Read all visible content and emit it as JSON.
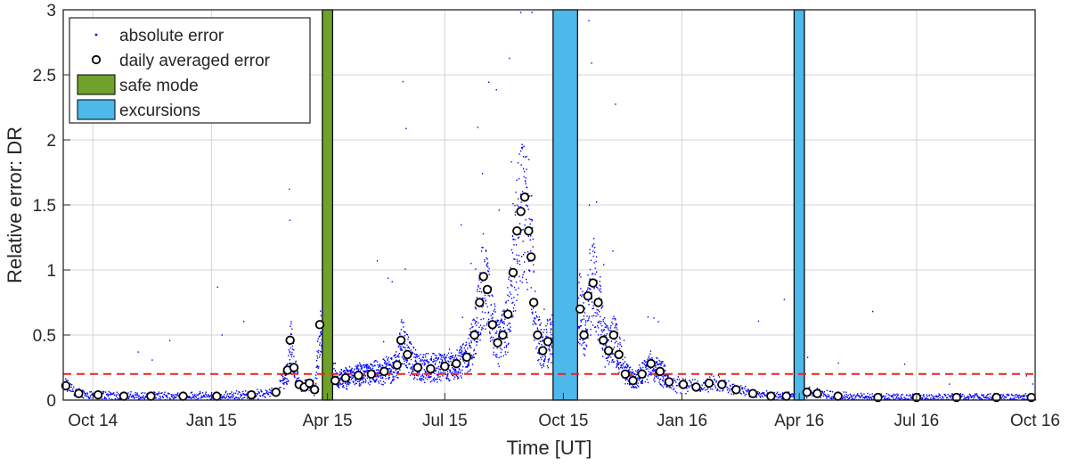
{
  "chart_data": {
    "type": "scatter",
    "xlabel": "Time [UT]",
    "ylabel": "Relative error: DR",
    "ylim": [
      0,
      3
    ],
    "xlim": [
      "2014-09-08",
      "2016-10-01"
    ],
    "grid": true,
    "legend_placement": "top-left",
    "x_ticks": [
      {
        "date": "2014-10-01",
        "label": "Oct 14"
      },
      {
        "date": "2015-01-01",
        "label": "Jan 15"
      },
      {
        "date": "2015-04-01",
        "label": "Apr 15"
      },
      {
        "date": "2015-07-01",
        "label": "Jul 15"
      },
      {
        "date": "2015-10-01",
        "label": "Oct 15"
      },
      {
        "date": "2016-01-01",
        "label": "Jan 16"
      },
      {
        "date": "2016-04-01",
        "label": "Apr 16"
      },
      {
        "date": "2016-07-01",
        "label": "Jul 16"
      },
      {
        "date": "2016-10-01",
        "label": "Oct 16"
      }
    ],
    "y_ticks": [
      {
        "value": 0,
        "label": "0"
      },
      {
        "value": 0.5,
        "label": "0.5"
      },
      {
        "value": 1,
        "label": "1"
      },
      {
        "value": 1.5,
        "label": "1.5"
      },
      {
        "value": 2,
        "label": "2"
      },
      {
        "value": 2.5,
        "label": "2.5"
      },
      {
        "value": 3,
        "label": "3"
      }
    ],
    "legend": [
      {
        "label": "absolute error",
        "marker": "point"
      },
      {
        "label": "daily averaged error",
        "marker": "circle"
      },
      {
        "label": "safe mode",
        "marker": "patch"
      },
      {
        "label": "excursions",
        "marker": "patch"
      }
    ],
    "threshold": {
      "value": 0.2,
      "color": "#e8231f",
      "style": "dashed"
    },
    "regions": [
      {
        "type": "safe mode",
        "start": "2015-03-28",
        "end": "2015-04-05",
        "color": "#6fa12b"
      },
      {
        "type": "excursions",
        "start": "2015-09-23",
        "end": "2015-10-12",
        "color": "#4db8ea"
      },
      {
        "type": "excursions",
        "start": "2016-03-28",
        "end": "2016-04-05",
        "color": "#4db8ea"
      }
    ],
    "series": [
      {
        "name": "daily averaged error",
        "color": "#000000",
        "fill": "#ffffff",
        "points": [
          [
            "2014-09-10",
            0.11
          ],
          [
            "2014-09-20",
            0.05
          ],
          [
            "2014-10-05",
            0.04
          ],
          [
            "2014-10-25",
            0.03
          ],
          [
            "2014-11-15",
            0.03
          ],
          [
            "2014-12-10",
            0.03
          ],
          [
            "2015-01-05",
            0.03
          ],
          [
            "2015-02-01",
            0.04
          ],
          [
            "2015-02-20",
            0.06
          ],
          [
            "2015-03-01",
            0.23
          ],
          [
            "2015-03-03",
            0.46
          ],
          [
            "2015-03-06",
            0.25
          ],
          [
            "2015-03-10",
            0.12
          ],
          [
            "2015-03-14",
            0.1
          ],
          [
            "2015-03-18",
            0.13
          ],
          [
            "2015-03-22",
            0.08
          ],
          [
            "2015-03-26",
            0.58
          ],
          [
            "2015-04-07",
            0.15
          ],
          [
            "2015-04-15",
            0.17
          ],
          [
            "2015-04-25",
            0.19
          ],
          [
            "2015-05-05",
            0.2
          ],
          [
            "2015-05-15",
            0.22
          ],
          [
            "2015-05-25",
            0.27
          ],
          [
            "2015-05-28",
            0.46
          ],
          [
            "2015-06-02",
            0.35
          ],
          [
            "2015-06-10",
            0.25
          ],
          [
            "2015-06-20",
            0.24
          ],
          [
            "2015-07-01",
            0.26
          ],
          [
            "2015-07-10",
            0.28
          ],
          [
            "2015-07-18",
            0.33
          ],
          [
            "2015-07-24",
            0.5
          ],
          [
            "2015-07-28",
            0.75
          ],
          [
            "2015-07-31",
            0.95
          ],
          [
            "2015-08-03",
            0.85
          ],
          [
            "2015-08-07",
            0.58
          ],
          [
            "2015-08-11",
            0.44
          ],
          [
            "2015-08-15",
            0.5
          ],
          [
            "2015-08-19",
            0.66
          ],
          [
            "2015-08-23",
            0.98
          ],
          [
            "2015-08-26",
            1.3
          ],
          [
            "2015-08-29",
            1.45
          ],
          [
            "2015-09-01",
            1.56
          ],
          [
            "2015-09-04",
            1.3
          ],
          [
            "2015-09-06",
            1.1
          ],
          [
            "2015-09-08",
            0.75
          ],
          [
            "2015-09-11",
            0.5
          ],
          [
            "2015-09-15",
            0.38
          ],
          [
            "2015-09-19",
            0.45
          ],
          [
            "2015-10-14",
            0.7
          ],
          [
            "2015-10-17",
            0.5
          ],
          [
            "2015-10-20",
            0.8
          ],
          [
            "2015-10-24",
            0.9
          ],
          [
            "2015-10-28",
            0.75
          ],
          [
            "2015-11-01",
            0.46
          ],
          [
            "2015-11-05",
            0.38
          ],
          [
            "2015-11-09",
            0.5
          ],
          [
            "2015-11-13",
            0.35
          ],
          [
            "2015-11-18",
            0.2
          ],
          [
            "2015-11-24",
            0.15
          ],
          [
            "2015-12-01",
            0.2
          ],
          [
            "2015-12-08",
            0.28
          ],
          [
            "2015-12-15",
            0.22
          ],
          [
            "2015-12-22",
            0.14
          ],
          [
            "2016-01-02",
            0.12
          ],
          [
            "2016-01-12",
            0.1
          ],
          [
            "2016-01-22",
            0.13
          ],
          [
            "2016-02-01",
            0.12
          ],
          [
            "2016-02-12",
            0.08
          ],
          [
            "2016-02-25",
            0.05
          ],
          [
            "2016-03-10",
            0.03
          ],
          [
            "2016-03-22",
            0.03
          ],
          [
            "2016-04-07",
            0.06
          ],
          [
            "2016-04-15",
            0.05
          ],
          [
            "2016-05-01",
            0.03
          ],
          [
            "2016-06-01",
            0.02
          ],
          [
            "2016-07-01",
            0.02
          ],
          [
            "2016-08-01",
            0.02
          ],
          [
            "2016-09-01",
            0.02
          ],
          [
            "2016-09-28",
            0.02
          ]
        ]
      }
    ],
    "absolute_error": {
      "name": "absolute error",
      "color": "#0000ff",
      "marker": "point",
      "rendering": "dense point cloud around the daily averaged error, with sparse outliers up to 3"
    }
  }
}
